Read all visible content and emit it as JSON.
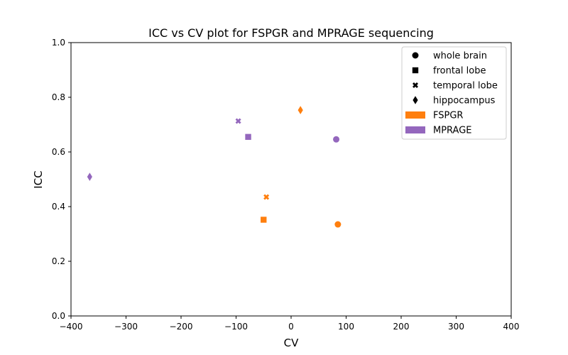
{
  "chart_data": {
    "type": "scatter",
    "title": "ICC vs CV plot for FSPGR and MPRAGE sequencing",
    "xlabel": "CV",
    "ylabel": "ICC",
    "xlim": [
      -400,
      400
    ],
    "ylim": [
      0.0,
      1.0
    ],
    "xticks": [
      -400,
      -300,
      -200,
      -100,
      0,
      100,
      200,
      300,
      400
    ],
    "xtick_labels": [
      "−400",
      "−300",
      "−200",
      "−100",
      "0",
      "100",
      "200",
      "300",
      "400"
    ],
    "yticks": [
      0.0,
      0.2,
      0.4,
      0.6,
      0.8,
      1.0
    ],
    "ytick_labels": [
      "0.0",
      "0.2",
      "0.4",
      "0.6",
      "0.8",
      "1.0"
    ],
    "grid": false,
    "legend_position": "top-right",
    "markers": [
      {
        "label": "whole brain",
        "shape": "circle"
      },
      {
        "label": "frontal lobe",
        "shape": "square"
      },
      {
        "label": "temporal lobe",
        "shape": "x"
      },
      {
        "label": "hippocampus",
        "shape": "diamond"
      }
    ],
    "series": [
      {
        "name": "FSPGR",
        "color": "#ff7f0e",
        "points": [
          {
            "region": "whole brain",
            "shape": "circle",
            "x": 85,
            "y": 0.335
          },
          {
            "region": "frontal lobe",
            "shape": "square",
            "x": -50,
            "y": 0.352
          },
          {
            "region": "temporal lobe",
            "shape": "x",
            "x": -45,
            "y": 0.435
          },
          {
            "region": "hippocampus",
            "shape": "diamond",
            "x": 17,
            "y": 0.753
          }
        ]
      },
      {
        "name": "MPRAGE",
        "color": "#9467bd",
        "points": [
          {
            "region": "whole brain",
            "shape": "circle",
            "x": 82,
            "y": 0.646
          },
          {
            "region": "frontal lobe",
            "shape": "square",
            "x": -78,
            "y": 0.655
          },
          {
            "region": "temporal lobe",
            "shape": "x",
            "x": -96,
            "y": 0.713
          },
          {
            "region": "hippocampus",
            "shape": "diamond",
            "x": -366,
            "y": 0.509
          }
        ]
      }
    ]
  }
}
